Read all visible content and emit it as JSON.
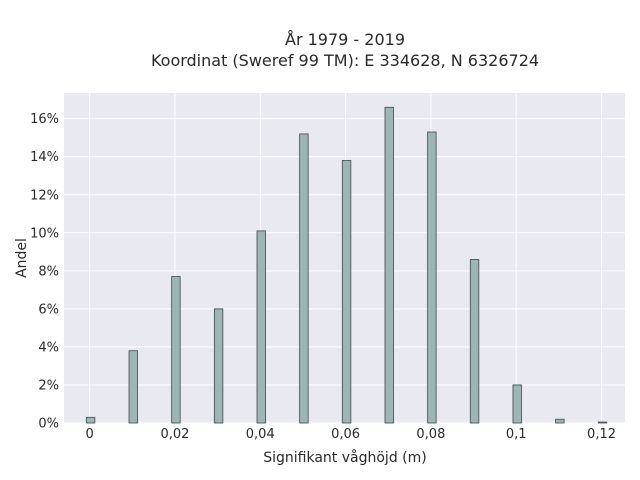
{
  "chart_data": {
    "type": "bar",
    "title": [
      "År 1979 - 2019",
      "Koordinat (Sweref 99 TM): E 334628, N 6326724"
    ],
    "xlabel": "Signifikant våghöjd (m)",
    "ylabel": "Andel",
    "x": [
      0,
      0.01,
      0.02,
      0.03,
      0.04,
      0.05,
      0.06,
      0.07,
      0.08,
      0.09,
      0.1,
      0.11,
      0.12
    ],
    "values": [
      0.003,
      0.038,
      0.077,
      0.06,
      0.101,
      0.152,
      0.138,
      0.166,
      0.153,
      0.086,
      0.02,
      0.002,
      0.0005
    ],
    "xlim": [
      -0.006,
      0.1255
    ],
    "ylim": [
      0,
      0.1735
    ],
    "x_ticks": [
      0,
      0.02,
      0.04,
      0.06,
      0.08,
      0.1,
      0.12
    ],
    "x_tick_labels": [
      "0",
      "0,02",
      "0,04",
      "0,06",
      "0,08",
      "0,1",
      "0,12"
    ],
    "y_ticks": [
      0,
      0.02,
      0.04,
      0.06,
      0.08,
      0.1,
      0.12,
      0.14,
      0.16
    ],
    "y_tick_labels": [
      "0%",
      "2%",
      "4%",
      "6%",
      "8%",
      "10%",
      "12%",
      "14%",
      "16%"
    ],
    "grid": true,
    "colors": {
      "bar_fill": "#9fb4b4",
      "bar_stroke": "#3a4a4a",
      "plot_bg": "#e9e9f1",
      "grid": "#ffffff"
    }
  }
}
